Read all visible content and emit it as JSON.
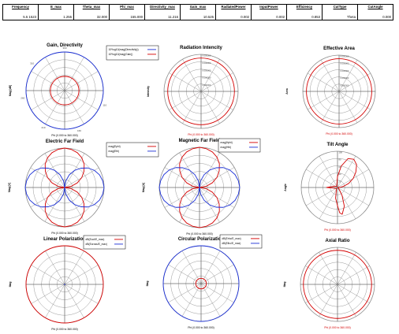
{
  "summary_table": {
    "columns": [
      {
        "header": "Frequency",
        "value": "5.5 1523"
      },
      {
        "header": "E_max",
        "value": "1.255"
      },
      {
        "header": "Theta_max",
        "value": "32.000"
      },
      {
        "header": "Phi_max",
        "value": "155.000"
      },
      {
        "header": "Directivity_max",
        "value": "11.216"
      },
      {
        "header": "Gain_max",
        "value": "10.525"
      },
      {
        "header": "RadiatedPower",
        "value": "0.002"
      },
      {
        "header": "InputPower",
        "value": "0.002"
      },
      {
        "header": "Efficiency",
        "value": "0.853"
      },
      {
        "header": "CutType",
        "value": "Theta"
      },
      {
        "header": "CutAngle",
        "value": "0.000"
      }
    ]
  },
  "colors": {
    "series_a": "#d40000",
    "series_b": "#1a2fd6",
    "grid": "#8c8c8c",
    "axis": "#000000"
  },
  "chart_data": [
    {
      "type": "polar",
      "title": "Gain, Directivity",
      "ylabel": "Mag [dB]",
      "footer": "Phi (0.000 to 360.000)",
      "footer_color": "#000000",
      "legend": "right",
      "radial_range": [
        0,
        1
      ],
      "angle_tick_labels": [
        "360",
        "310",
        "260",
        "210",
        "160",
        "110"
      ],
      "radial_tick_labels": [],
      "series": [
        {
          "name": "10*log10(mag(Directivity))",
          "color": "#1a2fd6",
          "theta_deg": [
            0,
            90,
            180,
            270,
            360
          ],
          "r": [
            1.0,
            1.0,
            1.0,
            1.0,
            1.0
          ]
        },
        {
          "name": "10*log10(mag(Gain))",
          "color": "#d40000",
          "theta_deg": [
            0,
            90,
            180,
            270,
            360
          ],
          "r": [
            0.37,
            0.37,
            0.37,
            0.37,
            0.37
          ]
        }
      ]
    },
    {
      "type": "polar",
      "title": "Radiation Intencity",
      "ylabel": "Intensity",
      "footer": "Phi (0.000 to 360.000)",
      "footer_color": "#d40000",
      "legend": "none",
      "radial_range": [
        0,
        1
      ],
      "angle_tick_labels": [],
      "radial_tick_labels": [
        "0.000000",
        "0.000000",
        "0.000000",
        "0.000000",
        "0.000000"
      ],
      "series": [
        {
          "name": "",
          "color": "#d40000",
          "theta_deg": [
            0,
            90,
            180,
            270,
            360
          ],
          "r": [
            0.9,
            0.9,
            0.9,
            0.9,
            0.9
          ]
        }
      ]
    },
    {
      "type": "polar",
      "title": "Effective Area",
      "ylabel": "Area",
      "footer": "Phi (0.000 to 360.000)",
      "footer_color": "#d40000",
      "legend": "none",
      "radial_range": [
        0,
        1
      ],
      "angle_tick_labels": [],
      "radial_tick_labels": [
        "0.000000",
        "0.000000",
        "0.000000",
        "0.000000",
        "0.000000"
      ],
      "series": [
        {
          "name": "",
          "color": "#d40000",
          "theta_deg": [
            0,
            90,
            180,
            270,
            360
          ],
          "r": [
            0.9,
            0.9,
            0.9,
            0.9,
            0.9
          ]
        }
      ]
    },
    {
      "type": "polar",
      "title": "Electric Far Field",
      "ylabel": "Mag [V]",
      "footer": "Phi (0.000 to 360.000)",
      "footer_color": "#000000",
      "legend": "right",
      "radial_range": [
        0,
        1
      ],
      "angle_tick_labels": [],
      "radial_tick_labels": [],
      "series": [
        {
          "name": "mag(Ephi)",
          "color": "#d40000",
          "theta_deg": [
            0,
            10,
            20,
            30,
            40,
            50,
            60,
            70,
            80,
            90,
            100,
            110,
            120,
            130,
            140,
            150,
            160,
            170,
            180,
            190,
            200,
            210,
            220,
            230,
            240,
            250,
            260,
            270,
            280,
            290,
            300,
            310,
            320,
            330,
            340,
            350,
            360
          ],
          "r": [
            0.0,
            0.17,
            0.34,
            0.5,
            0.64,
            0.77,
            0.87,
            0.94,
            0.98,
            1.0,
            0.98,
            0.94,
            0.87,
            0.77,
            0.64,
            0.5,
            0.34,
            0.17,
            0.0,
            0.17,
            0.34,
            0.5,
            0.64,
            0.77,
            0.87,
            0.94,
            0.98,
            1.0,
            0.98,
            0.94,
            0.87,
            0.77,
            0.64,
            0.5,
            0.34,
            0.17,
            0.0
          ]
        },
        {
          "name": "mag(Eth)",
          "color": "#1a2fd6",
          "theta_deg": [
            0,
            10,
            20,
            30,
            40,
            50,
            60,
            70,
            80,
            90,
            100,
            110,
            120,
            130,
            140,
            150,
            160,
            170,
            180,
            190,
            200,
            210,
            220,
            230,
            240,
            250,
            260,
            270,
            280,
            290,
            300,
            310,
            320,
            330,
            340,
            350,
            360
          ],
          "r": [
            1.0,
            0.98,
            0.94,
            0.87,
            0.77,
            0.64,
            0.5,
            0.34,
            0.17,
            0.0,
            0.17,
            0.34,
            0.5,
            0.64,
            0.77,
            0.87,
            0.94,
            0.98,
            1.0,
            0.98,
            0.94,
            0.87,
            0.77,
            0.64,
            0.5,
            0.34,
            0.17,
            0.0,
            0.17,
            0.34,
            0.5,
            0.64,
            0.77,
            0.87,
            0.94,
            0.98,
            1.0
          ]
        }
      ]
    },
    {
      "type": "polar",
      "title": "Magnetic Far Field",
      "ylabel": "Mag [A]",
      "footer": "Phi (0.000 to 360.000)",
      "footer_color": "#000000",
      "legend": "top-right",
      "radial_range": [
        0,
        1
      ],
      "angle_tick_labels": [],
      "radial_tick_labels": [],
      "series": [
        {
          "name": "mag(Hphi)",
          "color": "#d40000",
          "theta_deg": [
            0,
            10,
            20,
            30,
            40,
            50,
            60,
            70,
            80,
            90,
            100,
            110,
            120,
            130,
            140,
            150,
            160,
            170,
            180,
            190,
            200,
            210,
            220,
            230,
            240,
            250,
            260,
            270,
            280,
            290,
            300,
            310,
            320,
            330,
            340,
            350,
            360
          ],
          "r": [
            0.0,
            0.17,
            0.34,
            0.5,
            0.64,
            0.77,
            0.87,
            0.94,
            0.98,
            1.0,
            0.98,
            0.94,
            0.87,
            0.77,
            0.64,
            0.5,
            0.34,
            0.17,
            0.0,
            0.17,
            0.34,
            0.5,
            0.64,
            0.77,
            0.87,
            0.94,
            0.98,
            1.0,
            0.98,
            0.94,
            0.87,
            0.77,
            0.64,
            0.5,
            0.34,
            0.17,
            0.0
          ]
        },
        {
          "name": "mag(Hth)",
          "color": "#1a2fd6",
          "theta_deg": [
            0,
            10,
            20,
            30,
            40,
            50,
            60,
            70,
            80,
            90,
            100,
            110,
            120,
            130,
            140,
            150,
            160,
            170,
            180,
            190,
            200,
            210,
            220,
            230,
            240,
            250,
            260,
            270,
            280,
            290,
            300,
            310,
            320,
            330,
            340,
            350,
            360
          ],
          "r": [
            1.0,
            0.98,
            0.94,
            0.87,
            0.77,
            0.64,
            0.5,
            0.34,
            0.17,
            0.0,
            0.17,
            0.34,
            0.5,
            0.64,
            0.77,
            0.87,
            0.94,
            0.98,
            1.0,
            0.98,
            0.94,
            0.87,
            0.77,
            0.64,
            0.5,
            0.34,
            0.17,
            0.0,
            0.17,
            0.34,
            0.5,
            0.64,
            0.77,
            0.87,
            0.94,
            0.98,
            1.0
          ]
        }
      ]
    },
    {
      "type": "polar",
      "title": "Tilt Angle",
      "ylabel": "Angle",
      "footer": "Phi (0.000 to 360.000)",
      "footer_color": "#d40000",
      "legend": "none",
      "radial_range": [
        0,
        1
      ],
      "angle_tick_labels": [],
      "radial_tick_labels": [
        "100",
        "80",
        "60",
        "40",
        "20"
      ],
      "series": [
        {
          "name": "",
          "color": "#d40000",
          "theta_deg": [
            0,
            5,
            10,
            20,
            30,
            40,
            50,
            60,
            70,
            80,
            90,
            95,
            100,
            110,
            120,
            130,
            140,
            150,
            160,
            170,
            180,
            185,
            190,
            200,
            210,
            220,
            230,
            240,
            250,
            260,
            270,
            275,
            280,
            290,
            300,
            310,
            320,
            330,
            340,
            350,
            360
          ],
          "r": [
            0.0,
            0.08,
            0.16,
            0.33,
            0.5,
            0.66,
            0.82,
            0.9,
            0.85,
            0.6,
            0.3,
            0.15,
            0.1,
            0.06,
            0.04,
            0.04,
            0.05,
            0.07,
            0.1,
            0.15,
            0.3,
            0.15,
            0.1,
            0.07,
            0.05,
            0.04,
            0.04,
            0.06,
            0.1,
            0.3,
            0.5,
            0.7,
            0.75,
            0.55,
            0.25,
            0.08,
            0.03,
            0.02,
            0.02,
            0.0,
            0.0
          ]
        }
      ]
    },
    {
      "type": "polar",
      "title": "Linear Polarization",
      "ylabel": "Mag",
      "footer": "Phi (0.000 to 360.000)",
      "footer_color": "#000000",
      "legend": "top-right",
      "radial_range": [
        0,
        1
      ],
      "angle_tick_labels": [],
      "radial_tick_labels": [],
      "series": [
        {
          "name": "dB(Ecol/E_max)",
          "color": "#d40000",
          "theta_deg": [
            0,
            90,
            180,
            270,
            360
          ],
          "r": [
            1.0,
            1.0,
            1.0,
            1.0,
            1.0
          ]
        },
        {
          "name": "dB(Ecross/E_max)",
          "color": "#1a2fd6",
          "theta_deg": [
            0,
            90,
            180,
            270,
            360
          ],
          "r": [
            0.0,
            0.0,
            0.0,
            0.0,
            0.0
          ]
        }
      ]
    },
    {
      "type": "polar",
      "title": "Circular Polarization",
      "ylabel": "Mag",
      "footer": "Phi (0.000 to 360.000)",
      "footer_color": "#000000",
      "legend": "top-right",
      "radial_range": [
        0,
        1
      ],
      "angle_tick_labels": [],
      "radial_tick_labels": [],
      "series": [
        {
          "name": "dB(Erhc/E_max)",
          "color": "#d40000",
          "theta_deg": [
            0,
            90,
            180,
            270,
            360
          ],
          "r": [
            0.14,
            0.14,
            0.14,
            0.14,
            0.14
          ]
        },
        {
          "name": "dB(Elhc/E_max)",
          "color": "#1a2fd6",
          "theta_deg": [
            0,
            90,
            180,
            270,
            360
          ],
          "r": [
            1.0,
            1.0,
            1.0,
            1.0,
            1.0
          ]
        }
      ]
    },
    {
      "type": "polar",
      "title": "Axial Ratio",
      "ylabel": "Mag",
      "footer": "Phi (0.000 to 360.000)",
      "footer_color": "#d40000",
      "legend": "none",
      "radial_range": [
        0,
        1
      ],
      "angle_tick_labels": [],
      "radial_tick_labels": [],
      "series": [
        {
          "name": "",
          "color": "#d40000",
          "theta_deg": [
            0,
            90,
            180,
            270,
            360
          ],
          "r": [
            0.92,
            0.92,
            0.92,
            0.92,
            0.92
          ]
        }
      ]
    }
  ]
}
